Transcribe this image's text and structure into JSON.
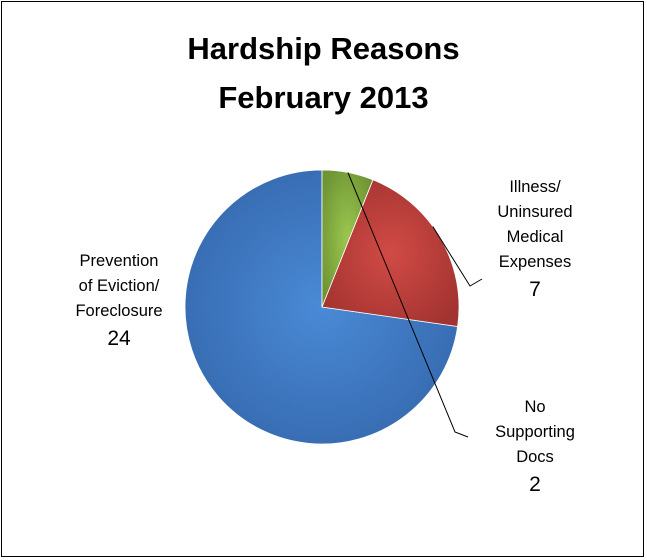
{
  "chart_data": {
    "type": "pie",
    "title": "Hardship Reasons",
    "subtitle": "February 2013",
    "slices": [
      {
        "name": "Prevention of Eviction/ Foreclosure",
        "label_lines": [
          "Prevention",
          "of Eviction/",
          "Foreclosure"
        ],
        "value": 24,
        "value_label": "24",
        "color": "#3d7cc9"
      },
      {
        "name": "Illness/ Uninsured Medical Expenses",
        "label_lines": [
          "Illness/",
          "Uninsured",
          "Medical",
          "Expenses"
        ],
        "value": 7,
        "value_label": "7",
        "color": "#c0403c"
      },
      {
        "name": "No Supporting Docs",
        "label_lines": [
          "No",
          "Supporting",
          "Docs"
        ],
        "value": 2,
        "value_label": "2",
        "color": "#8db744"
      }
    ],
    "start_angle_deg": 90,
    "direction": "counterclockwise",
    "legend": "none"
  }
}
